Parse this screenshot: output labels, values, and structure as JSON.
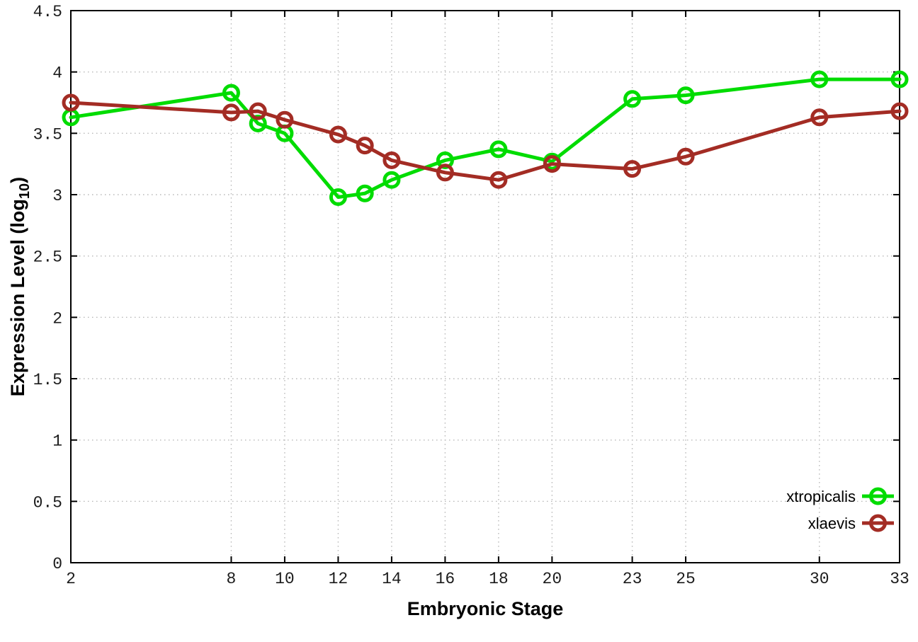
{
  "chart_data": {
    "type": "line",
    "title": "",
    "xlabel": "Embryonic Stage",
    "ylabel": "Expression Level (log10)",
    "ylabel_parts": {
      "main": "Expression Level (log",
      "sub": "10",
      "suffix": ")"
    },
    "xlim": [
      2,
      33
    ],
    "ylim": [
      0,
      4.5
    ],
    "x": [
      2,
      8,
      9,
      10,
      12,
      13,
      14,
      16,
      18,
      20,
      23,
      25,
      30,
      33
    ],
    "xtick_values": [
      2,
      8,
      10,
      12,
      14,
      16,
      18,
      20,
      23,
      25,
      30,
      33
    ],
    "xtick_labels": [
      "2",
      "8",
      "10",
      "12",
      "14",
      "16",
      "18",
      "20",
      "23",
      "25",
      "30",
      "33"
    ],
    "ytick_values": [
      0,
      0.5,
      1,
      1.5,
      2,
      2.5,
      3,
      3.5,
      4,
      4.5
    ],
    "ytick_labels": [
      "0",
      "0.5",
      "1",
      "1.5",
      "2",
      "2.5",
      "3",
      "3.5",
      "4",
      "4.5"
    ],
    "grid": true,
    "grid_color": "#b8b8b8",
    "border_color": "#000000",
    "legend_position": "bottom-right",
    "marker": "open-circle",
    "series": [
      {
        "name": "xtropicalis",
        "color": "#00dc00",
        "values": [
          3.63,
          3.83,
          3.58,
          3.5,
          2.98,
          3.01,
          3.12,
          3.28,
          3.37,
          3.27,
          3.78,
          3.81,
          3.94,
          3.94
        ]
      },
      {
        "name": "xlaevis",
        "color": "#a32c24",
        "values": [
          3.75,
          3.67,
          3.68,
          3.61,
          3.49,
          3.4,
          3.28,
          3.18,
          3.12,
          3.25,
          3.21,
          3.31,
          3.63,
          3.68
        ]
      }
    ]
  }
}
